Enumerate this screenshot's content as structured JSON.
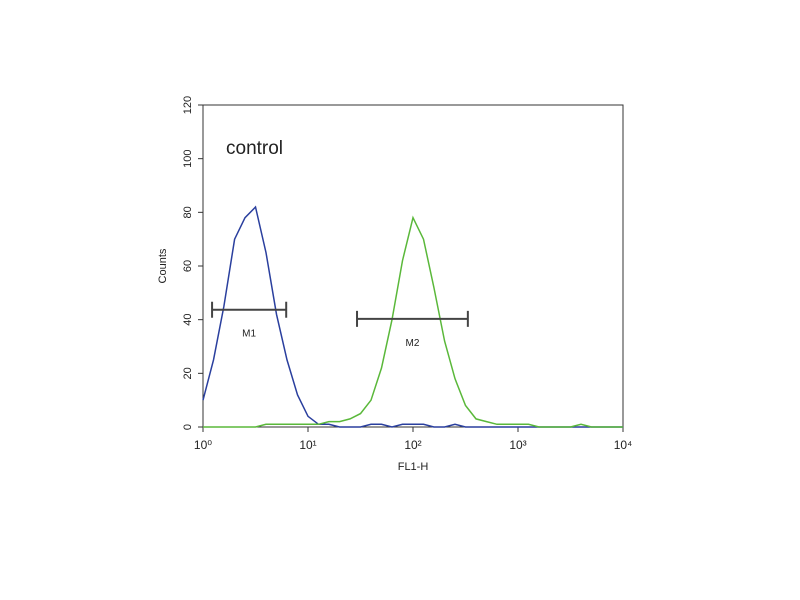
{
  "chart_data": {
    "type": "line",
    "annotation": "control",
    "xlabel": "FL1-H",
    "ylabel": "Counts",
    "xscale": "log",
    "xlim": [
      1,
      10000
    ],
    "xticks": [
      {
        "value": 1,
        "label": "10⁰"
      },
      {
        "value": 10,
        "label": "10¹"
      },
      {
        "value": 100,
        "label": "10²"
      },
      {
        "value": 1000,
        "label": "10³"
      },
      {
        "value": 10000,
        "label": "10⁴"
      }
    ],
    "ylim": [
      0,
      120
    ],
    "yticks": [
      0,
      20,
      40,
      60,
      80,
      100,
      120
    ],
    "x": [
      1,
      1.26,
      1.58,
      2,
      2.51,
      3.16,
      3.98,
      5.01,
      6.31,
      7.94,
      10,
      12.6,
      15.8,
      20,
      25.1,
      31.6,
      39.8,
      50.1,
      63.1,
      79.4,
      100,
      126,
      158,
      200,
      251,
      316,
      398,
      501,
      631,
      794,
      1000,
      1259,
      1585,
      1995,
      2512,
      3162,
      3981,
      5012,
      6310,
      7943,
      10000
    ],
    "series": [
      {
        "color": "#2a3f9e",
        "values": [
          10,
          25,
          45,
          70,
          78,
          82,
          65,
          42,
          25,
          12,
          4,
          1,
          1,
          0,
          0,
          0,
          1,
          1,
          0,
          1,
          1,
          1,
          0,
          0,
          1,
          0,
          0,
          0,
          0,
          0,
          0,
          0,
          0,
          0,
          0,
          0,
          0,
          0,
          0,
          0,
          0
        ]
      },
      {
        "color": "#5ab83a",
        "values": [
          0,
          0,
          0,
          0,
          0,
          0,
          1,
          1,
          1,
          1,
          1,
          1,
          2,
          2,
          3,
          5,
          10,
          22,
          40,
          62,
          78,
          70,
          52,
          32,
          18,
          8,
          3,
          2,
          1,
          1,
          1,
          1,
          0,
          0,
          0,
          0,
          1,
          0,
          0,
          0,
          0
        ]
      }
    ],
    "markers": [
      {
        "label": "M1",
        "range": [
          1.22,
          6.2
        ],
        "y": 43.7
      },
      {
        "label": "M2",
        "range": [
          29.3,
          333
        ],
        "y": 40.3
      }
    ]
  }
}
